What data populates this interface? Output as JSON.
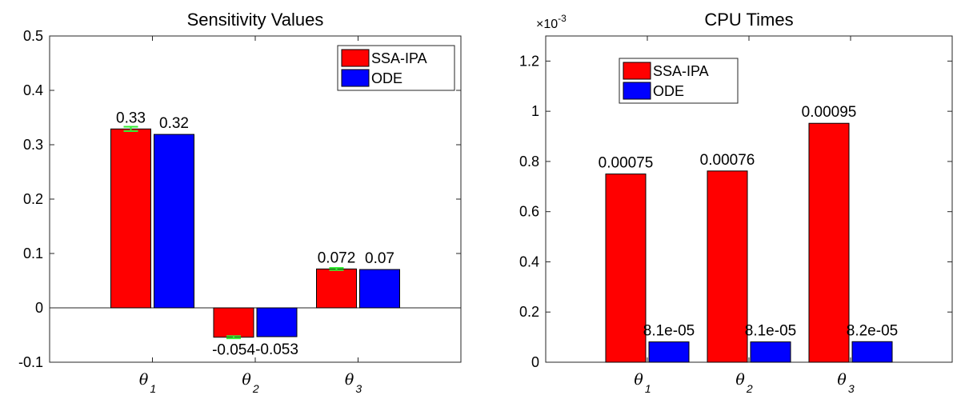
{
  "colors": {
    "series_1": "#ff0000",
    "series_2": "#0000ff",
    "errorbar": "#33ee33"
  },
  "chart_data": [
    {
      "type": "bar",
      "title": "Sensitivity Values",
      "categories": [
        {
          "sym": "θ",
          "sub": "1"
        },
        {
          "sym": "θ",
          "sub": "2"
        },
        {
          "sym": "θ",
          "sub": "3"
        }
      ],
      "series": [
        {
          "name": "SSA-IPA",
          "values": [
            0.329,
            -0.054,
            0.0715
          ],
          "labels": [
            "0.33",
            "-0.054",
            "0.072"
          ],
          "errorbar": [
            0.004,
            0.002,
            0.002
          ]
        },
        {
          "name": "ODE",
          "values": [
            0.319,
            -0.053,
            0.0705
          ],
          "labels": [
            "0.32",
            "-0.053",
            "0.07"
          ]
        }
      ],
      "ylim": [
        -0.1,
        0.5
      ],
      "yticks": [
        -0.1,
        0,
        0.1,
        0.2,
        0.3,
        0.4,
        0.5
      ],
      "ytick_labels": [
        "-0.1",
        "0",
        "0.1",
        "0.2",
        "0.3",
        "0.4",
        "0.5"
      ],
      "baseline": 0,
      "legend": "top-right",
      "grid": false
    },
    {
      "type": "bar",
      "title": "CPU Times",
      "exponent_label": "×10",
      "exponent": "-3",
      "categories": [
        {
          "sym": "θ",
          "sub": "1"
        },
        {
          "sym": "θ",
          "sub": "2"
        },
        {
          "sym": "θ",
          "sub": "3"
        }
      ],
      "series": [
        {
          "name": "SSA-IPA",
          "values": [
            0.75,
            0.762,
            0.952
          ],
          "labels": [
            "0.00075",
            "0.00076",
            "0.00095"
          ]
        },
        {
          "name": "ODE",
          "values": [
            0.081,
            0.081,
            0.082
          ],
          "labels": [
            "8.1e-05",
            "8.1e-05",
            "8.2e-05"
          ]
        }
      ],
      "ylim": [
        0,
        1.3
      ],
      "yticks": [
        0,
        0.2,
        0.4,
        0.6,
        0.8,
        1,
        1.2
      ],
      "ytick_labels": [
        "0",
        "0.2",
        "0.4",
        "0.6",
        "0.8",
        "1",
        "1.2"
      ],
      "legend": "top-left",
      "grid": false
    }
  ]
}
